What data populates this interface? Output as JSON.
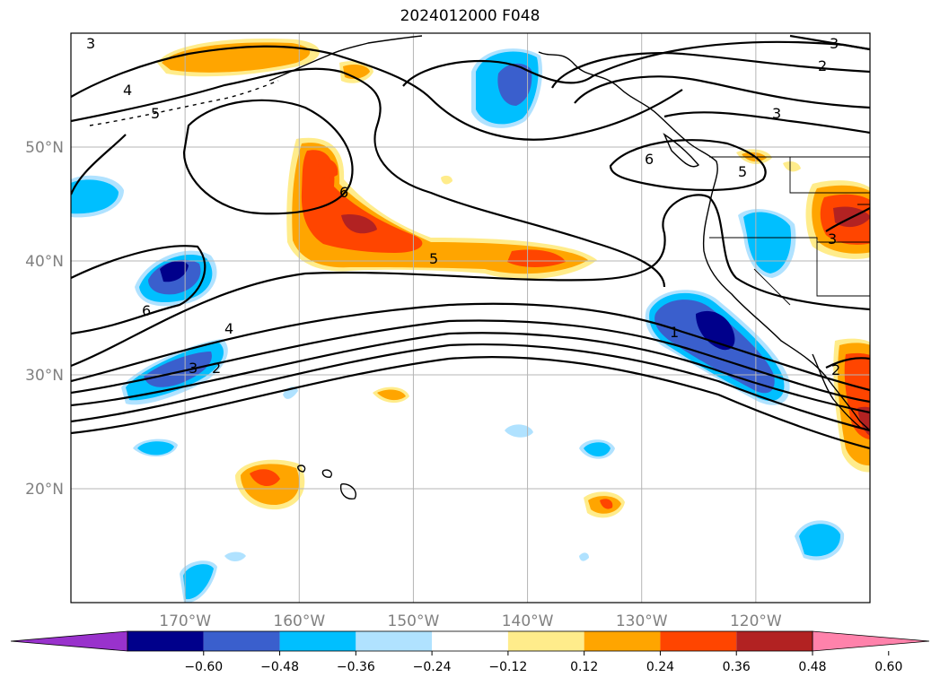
{
  "title": "2024012000 F048",
  "map": {
    "lat_labels": [
      {
        "lat": 50,
        "text": "50°N"
      },
      {
        "lat": 40,
        "text": "40°N"
      },
      {
        "lat": 30,
        "text": "30°N"
      },
      {
        "lat": 20,
        "text": "20°N"
      }
    ],
    "lon_labels": [
      {
        "lon": -170,
        "text": "170°W"
      },
      {
        "lon": -160,
        "text": "160°W"
      },
      {
        "lon": -150,
        "text": "150°W"
      },
      {
        "lon": -140,
        "text": "140°W"
      },
      {
        "lon": -130,
        "text": "130°W"
      },
      {
        "lon": -120,
        "text": "120°W"
      }
    ],
    "extent": {
      "lon_min": -180,
      "lon_max": -110,
      "lat_min": 10,
      "lat_max": 60
    },
    "contour_labels": [
      "3",
      "4",
      "5",
      "6",
      "5",
      "6",
      "4",
      "3",
      "2",
      "1",
      "3",
      "2",
      "3",
      "6",
      "5",
      "2",
      "3"
    ]
  },
  "colorbar": {
    "ticks": [
      "−0.60",
      "−0.48",
      "−0.36",
      "−0.24",
      "−0.12",
      "0.12",
      "0.24",
      "0.36",
      "0.48",
      "0.60"
    ],
    "colors": [
      "#9932cc",
      "#00008b",
      "#3a5fcd",
      "#00bfff",
      "#b0e2ff",
      "#ffffff",
      "#ffec8b",
      "#ffa500",
      "#ff4500",
      "#b22222",
      "#ff82ab"
    ]
  }
}
